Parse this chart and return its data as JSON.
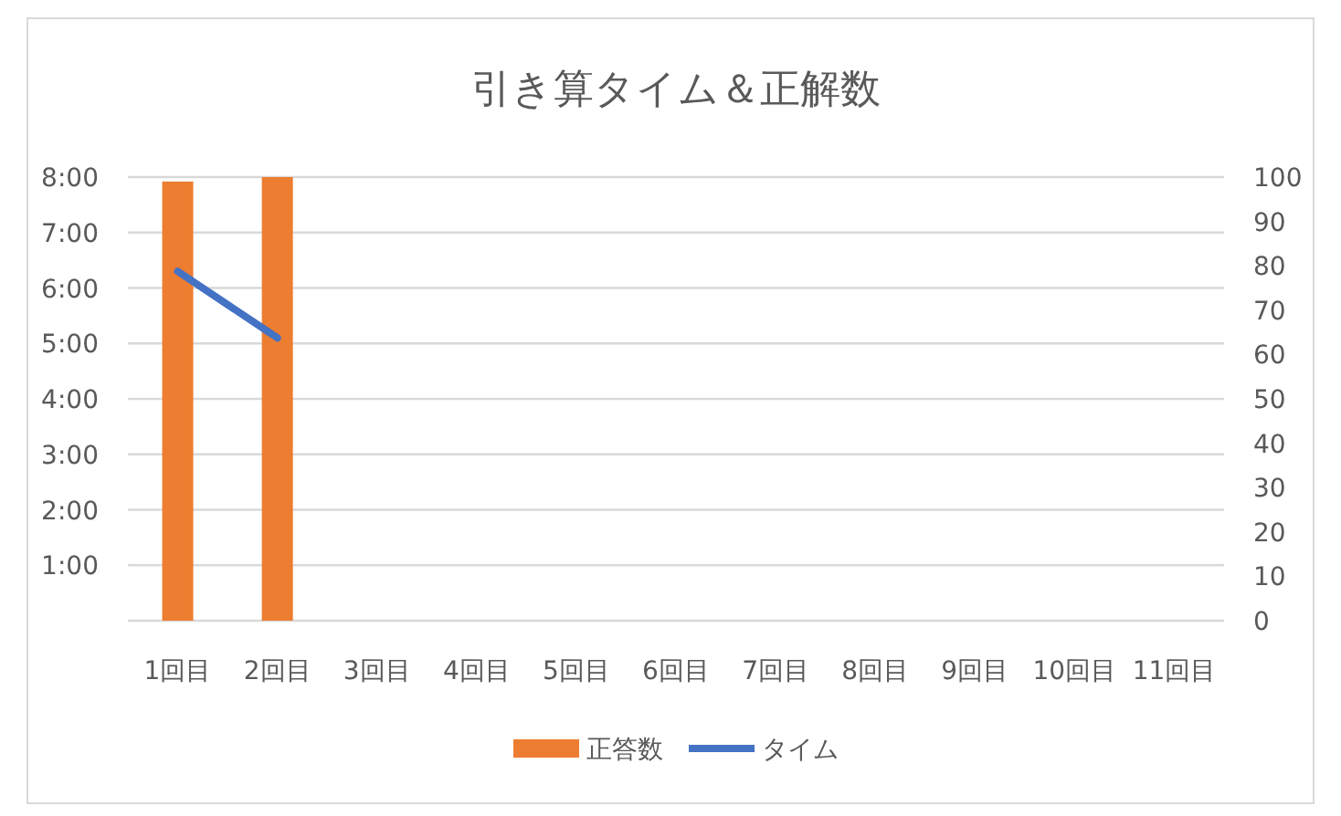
{
  "chart_data": {
    "type": "bar",
    "title": "引き算タイム＆正解数",
    "categories": [
      "1回目",
      "2回目",
      "3回目",
      "4回目",
      "5回目",
      "6回目",
      "7回目",
      "8回目",
      "9回目",
      "10回目",
      "11回目"
    ],
    "series": [
      {
        "name": "正答数",
        "axis": "y2",
        "color": "#ed7d31",
        "values": [
          99,
          100,
          null,
          null,
          null,
          null,
          null,
          null,
          null,
          null,
          null
        ]
      },
      {
        "name": "タイム",
        "type": "line",
        "axis": "y",
        "color": "#4472c4",
        "values": [
          6.3,
          5.1,
          null,
          null,
          null,
          null,
          null,
          null,
          null,
          null,
          null
        ]
      }
    ],
    "ylim": [
      0,
      8
    ],
    "yticks": [
      {
        "value": 0,
        "label": null
      },
      {
        "value": 1,
        "label": "1:00"
      },
      {
        "value": 2,
        "label": "2:00"
      },
      {
        "value": 3,
        "label": "3:00"
      },
      {
        "value": 4,
        "label": "4:00"
      },
      {
        "value": 5,
        "label": "5:00"
      },
      {
        "value": 6,
        "label": "6:00"
      },
      {
        "value": 7,
        "label": "7:00"
      },
      {
        "value": 8,
        "label": "8:00"
      }
    ],
    "y2lim": [
      0,
      100
    ],
    "y2ticks": [
      0,
      10,
      20,
      30,
      40,
      50,
      60,
      70,
      80,
      90,
      100
    ],
    "grid": "y",
    "legend": "bottom"
  }
}
